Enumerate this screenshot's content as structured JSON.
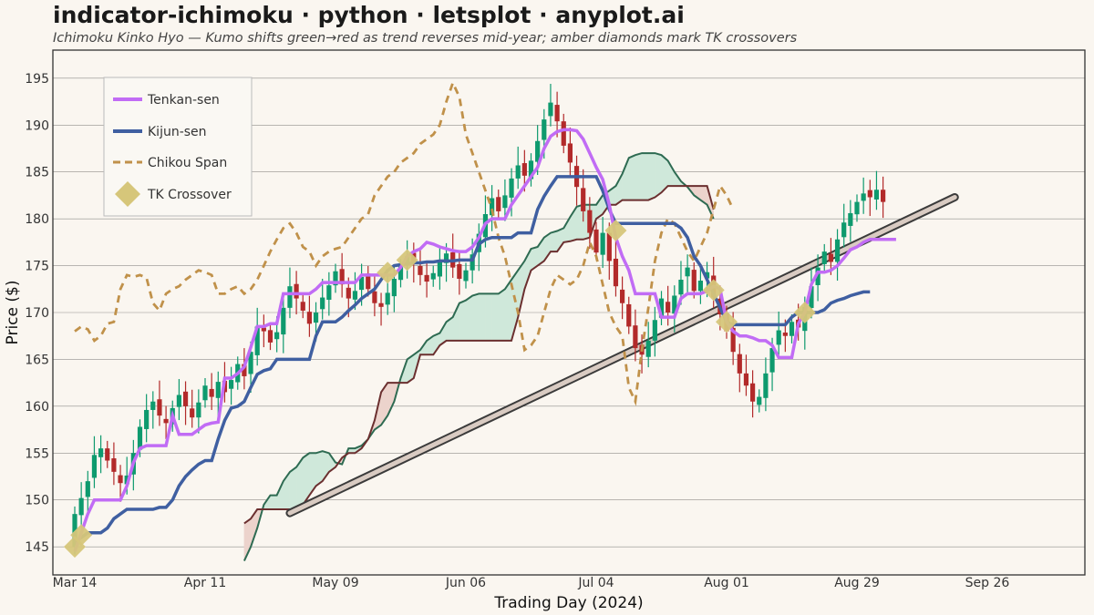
{
  "header": {
    "title": "indicator-ichimoku · python · letsplot · anyplot.ai",
    "subtitle": "Ichimoku Kinko Hyo — Kumo shifts green→red as trend reverses mid-year; amber diamonds mark TK crossovers"
  },
  "colors": {
    "background": "#faf6f0",
    "candle_up": "#0e9a6e",
    "candle_down": "#b22a2a",
    "tenkan": "#c16cf5",
    "kijun": "#3f5fa1",
    "chikou": "#c0914a",
    "crossover": "#d6c67a",
    "senkou_a": "#2e6b52",
    "senkou_b": "#6b2f2f",
    "kumo_bull": "#cfe8da",
    "kumo_bear": "#ecd3cc"
  },
  "chart_data": {
    "type": "line",
    "title": "indicator-ichimoku · python · letsplot · anyplot.ai",
    "subtitle": "Ichimoku Kinko Hyo — Kumo shifts green→red as trend reverses mid-year; amber diamonds mark TK crossovers",
    "xlabel": "Trading Day (2024)",
    "ylabel": "Price ($)",
    "ylim": [
      142,
      198
    ],
    "yticks": [
      145,
      150,
      155,
      160,
      165,
      170,
      175,
      180,
      185,
      190,
      195
    ],
    "grid": "horizontal",
    "legend_placement": "top-left",
    "x_tick_labels": [
      "Mar 14",
      "Apr 11",
      "May 09",
      "Jun 06",
      "Jul 04",
      "Aug 01",
      "Aug 29",
      "Sep 26"
    ],
    "legend": [
      "Tenkan-sen",
      "Kijun-sen",
      "Chikou Span",
      "TK Crossover"
    ],
    "close": [
      148.5,
      150.2,
      152.0,
      154.8,
      155.5,
      154.2,
      153.0,
      151.8,
      152.6,
      155.0,
      157.8,
      159.6,
      160.5,
      159.0,
      158.2,
      159.8,
      161.2,
      160.0,
      158.8,
      160.4,
      162.2,
      161.0,
      162.6,
      161.5,
      162.8,
      164.5,
      163.2,
      165.8,
      168.5,
      168.0,
      166.8,
      167.9,
      170.5,
      172.8,
      171.5,
      170.2,
      168.8,
      170.0,
      171.6,
      172.9,
      174.4,
      173.0,
      171.5,
      172.3,
      173.8,
      172.5,
      171.0,
      170.6,
      172.1,
      173.6,
      174.9,
      176.0,
      175.2,
      174.0,
      173.3,
      174.2,
      175.4,
      176.3,
      174.8,
      173.6,
      174.5,
      176.2,
      178.4,
      180.5,
      182.2,
      180.8,
      182.5,
      184.3,
      185.7,
      184.6,
      186.2,
      188.3,
      190.6,
      192.4,
      190.4,
      187.8,
      186.0,
      183.4,
      180.8,
      178.5,
      176.4,
      178.5,
      175.5,
      172.8,
      171.0,
      168.5,
      166.2,
      165.5,
      167.0,
      169.2,
      171.5,
      170.0,
      171.8,
      173.5,
      174.8,
      172.3,
      173.4,
      174.3,
      171.6,
      169.8,
      168.0,
      165.8,
      163.5,
      162.2,
      160.5,
      161.0,
      163.5,
      166.2,
      168.1,
      167.5,
      169.0,
      168.4,
      170.6,
      172.8,
      174.8,
      176.5,
      175.4,
      177.8,
      179.6,
      180.6,
      181.8,
      182.7,
      182.3,
      183.1,
      181.8
    ],
    "tenkan": [
      144.5,
      146.5,
      148.5,
      150.0,
      150.0,
      150.0,
      150.0,
      150.0,
      151.5,
      154.0,
      155.5,
      155.8,
      155.8,
      155.8,
      155.8,
      159.0,
      157.0,
      157.0,
      157.0,
      157.5,
      158.0,
      158.2,
      158.3,
      163.0,
      163.0,
      163.5,
      164.2,
      166.3,
      168.5,
      168.5,
      168.8,
      168.8,
      172.0,
      172.0,
      172.0,
      172.0,
      172.0,
      172.5,
      173.2,
      173.2,
      173.2,
      173.2,
      173.2,
      173.2,
      174.0,
      174.0,
      174.0,
      174.0,
      174.0,
      174.0,
      174.8,
      176.0,
      176.5,
      176.8,
      177.5,
      177.3,
      177.0,
      176.8,
      176.6,
      176.5,
      176.5,
      177.0,
      178.0,
      179.5,
      180.0,
      180.0,
      180.0,
      181.5,
      182.5,
      183.5,
      184.5,
      185.5,
      187.5,
      188.8,
      189.3,
      189.5,
      189.5,
      189.4,
      188.5,
      187.0,
      185.5,
      184.2,
      181.5,
      178.0,
      176.0,
      174.5,
      172.0,
      172.0,
      172.0,
      172.0,
      169.5,
      169.5,
      169.5,
      171.5,
      172.0,
      172.0,
      172.0,
      172.3,
      172.8,
      172.5,
      169.0,
      168.0,
      167.5,
      167.5,
      167.3,
      167.0,
      167.0,
      166.5,
      165.2,
      165.2,
      165.2,
      168.8,
      170.0,
      173.0,
      174.3,
      174.3,
      174.5,
      175.0,
      175.8,
      176.7,
      177.0,
      177.5,
      177.8,
      177.8,
      177.8,
      177.8,
      177.8
    ],
    "kijun": [
      145.5,
      146.0,
      146.5,
      146.5,
      146.5,
      147.0,
      148.0,
      148.5,
      149.0,
      149.0,
      149.0,
      149.0,
      149.0,
      149.2,
      149.2,
      150.0,
      151.5,
      152.5,
      153.2,
      153.8,
      154.2,
      154.2,
      156.5,
      158.5,
      159.8,
      160.0,
      160.5,
      162.0,
      163.4,
      163.8,
      164.0,
      165.0,
      165.0,
      165.0,
      165.0,
      165.0,
      165.0,
      167.5,
      169.0,
      169.0,
      169.0,
      169.5,
      170.2,
      170.8,
      171.5,
      172.0,
      172.5,
      173.5,
      174.5,
      175.0,
      175.1,
      175.2,
      175.3,
      175.3,
      175.4,
      175.4,
      175.5,
      175.5,
      175.5,
      175.6,
      175.6,
      175.6,
      177.3,
      177.8,
      178.0,
      178.0,
      178.0,
      178.0,
      178.5,
      178.5,
      178.5,
      181.0,
      182.4,
      183.5,
      184.5,
      184.5,
      184.5,
      184.5,
      184.5,
      184.5,
      184.5,
      183.0,
      181.0,
      179.5,
      179.5,
      179.5,
      179.5,
      179.5,
      179.5,
      179.5,
      179.5,
      179.5,
      179.5,
      179.0,
      178.0,
      176.0,
      175.0,
      173.5,
      172.0,
      170.5,
      169.0,
      168.7,
      168.7,
      168.7,
      168.7,
      168.7,
      168.7,
      168.7,
      168.7,
      168.7,
      169.5,
      170.0,
      170.0,
      170.0,
      170.0,
      170.3,
      171.0,
      171.3,
      171.5,
      171.8,
      172.0,
      172.2,
      172.2
    ],
    "senkou_a": [
      143.5,
      145.0,
      147.0,
      149.5,
      150.5,
      150.5,
      152.0,
      153.0,
      153.5,
      154.5,
      155.0,
      155.0,
      155.2,
      155.0,
      154.0,
      153.8,
      155.5,
      155.5,
      155.8,
      156.5,
      157.5,
      158.0,
      159.0,
      160.5,
      163.0,
      165.0,
      165.5,
      166.0,
      167.0,
      167.5,
      167.8,
      169.0,
      169.5,
      171.0,
      171.3,
      171.8,
      172.0,
      172.0,
      172.0,
      172.0,
      172.5,
      173.5,
      174.5,
      175.5,
      176.8,
      177.0,
      178.0,
      178.5,
      178.7,
      179.0,
      180.2,
      181.3,
      181.5,
      181.5,
      181.5,
      182.5,
      183.0,
      183.5,
      184.8,
      186.5,
      186.8,
      187.0,
      187.0,
      187.0,
      186.8,
      186.2,
      185.0,
      184.0,
      183.4,
      182.5,
      182.0,
      181.5,
      180.0
    ],
    "senkou_b": [
      147.5,
      148.0,
      149.0,
      149.0,
      149.0,
      149.0,
      149.0,
      149.0,
      149.0,
      149.5,
      150.5,
      151.5,
      152.0,
      153.0,
      153.5,
      154.5,
      155.0,
      155.0,
      155.5,
      156.5,
      158.5,
      161.5,
      162.5,
      162.5,
      162.5,
      162.5,
      163.0,
      165.5,
      165.5,
      165.5,
      166.5,
      167.0,
      167.0,
      167.0,
      167.0,
      167.0,
      167.0,
      167.0,
      167.0,
      167.0,
      167.0,
      167.0,
      169.5,
      172.5,
      174.5,
      175.0,
      175.5,
      176.5,
      176.5,
      177.5,
      177.6,
      177.8,
      177.8,
      178.0,
      180.0,
      180.5,
      181.5,
      181.5,
      182.0,
      182.0,
      182.0,
      182.0,
      182.0,
      182.3,
      182.8,
      183.5,
      183.5,
      183.5,
      183.5,
      183.5,
      183.5,
      183.5,
      181.0
    ],
    "chikou": [
      168.0,
      168.5,
      168.2,
      167.0,
      167.5,
      168.8,
      169.0,
      172.5,
      174.0,
      173.8,
      174.0,
      173.7,
      171.0,
      170.2,
      172.0,
      172.5,
      172.8,
      173.5,
      174.0,
      174.5,
      174.3,
      174.0,
      172.0,
      172.0,
      172.5,
      172.8,
      172.0,
      172.5,
      173.5,
      175.0,
      176.5,
      177.8,
      179.0,
      179.5,
      178.5,
      177.0,
      176.5,
      175.0,
      176.0,
      176.5,
      176.8,
      177.0,
      178.0,
      179.0,
      180.0,
      180.5,
      182.5,
      183.5,
      184.5,
      185.0,
      186.0,
      186.5,
      187.0,
      188.0,
      188.5,
      189.0,
      190.0,
      192.5,
      194.5,
      193.0,
      189.0,
      187.0,
      185.0,
      183.0,
      181.0,
      178.0,
      176.0,
      173.0,
      170.0,
      166.0,
      166.5,
      167.5,
      170.0,
      172.5,
      174.0,
      173.5,
      173.0,
      173.5,
      175.0,
      177.5,
      176.0,
      173.0,
      170.0,
      168.5,
      167.5,
      162.0,
      160.5,
      166.0,
      170.5,
      175.5,
      178.5,
      180.0,
      179.5,
      178.0,
      176.5,
      175.5,
      177.0,
      178.5,
      181.0,
      183.5,
      182.5,
      181.0
    ]
  }
}
